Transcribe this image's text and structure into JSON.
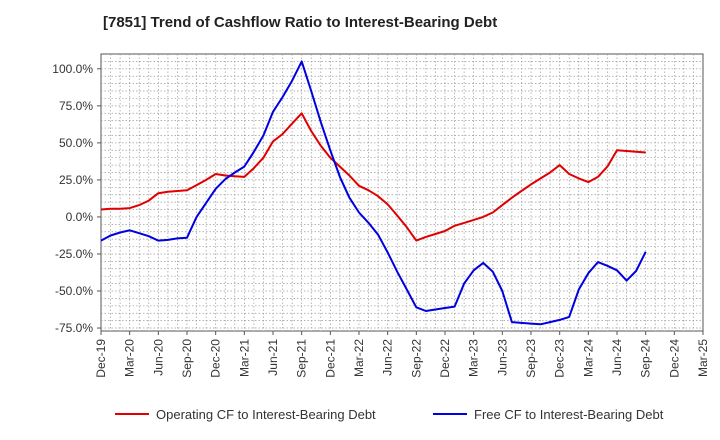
{
  "chart_data": {
    "type": "line",
    "title": "[7851]  Trend of Cashflow Ratio to Interest-Bearing Debt",
    "xlabel": "",
    "ylabel": "",
    "x_tick_labels": [
      "Dec-19",
      "Mar-20",
      "Jun-20",
      "Sep-20",
      "Dec-20",
      "Mar-21",
      "Jun-21",
      "Sep-21",
      "Dec-21",
      "Mar-22",
      "Jun-22",
      "Sep-22",
      "Dec-22",
      "Mar-23",
      "Jun-23",
      "Sep-23",
      "Dec-23",
      "Mar-24",
      "Jun-24",
      "Sep-24",
      "Dec-24",
      "Mar-25"
    ],
    "y_tick_labels": [
      "100.0%",
      "75.0%",
      "50.0%",
      "25.0%",
      "0.0%",
      "-25.0%",
      "-50.0%",
      "-75.0%"
    ],
    "y_ticks": [
      100,
      75,
      50,
      25,
      0,
      -25,
      -50,
      -75
    ],
    "ylim": [
      -77,
      110
    ],
    "xlim": [
      0,
      63
    ],
    "grid": true,
    "legend_position": "bottom",
    "series": [
      {
        "name": "Operating CF to Interest-Bearing Debt",
        "color": "#e00000",
        "points": [
          [
            0,
            5
          ],
          [
            1,
            5.5
          ],
          [
            2,
            5.5
          ],
          [
            3,
            6
          ],
          [
            4,
            8
          ],
          [
            5,
            11
          ],
          [
            6,
            16
          ],
          [
            7,
            17
          ],
          [
            8,
            17.5
          ],
          [
            9,
            18
          ],
          [
            10,
            21.5
          ],
          [
            11,
            25
          ],
          [
            12,
            29
          ],
          [
            13,
            28
          ],
          [
            14,
            27.5
          ],
          [
            15,
            27
          ],
          [
            16,
            33
          ],
          [
            17,
            40
          ],
          [
            18,
            51
          ],
          [
            19,
            56
          ],
          [
            20,
            63
          ],
          [
            21,
            70
          ],
          [
            22,
            58
          ],
          [
            23,
            48
          ],
          [
            24,
            40
          ],
          [
            25,
            34
          ],
          [
            26,
            28
          ],
          [
            27,
            21
          ],
          [
            28,
            18
          ],
          [
            29,
            14
          ],
          [
            30,
            8.5
          ],
          [
            31,
            1
          ],
          [
            32,
            -7
          ],
          [
            33,
            -16
          ],
          [
            34,
            -13.5
          ],
          [
            35,
            -11.5
          ],
          [
            36,
            -9.5
          ],
          [
            37,
            -6
          ],
          [
            38,
            -4
          ],
          [
            39,
            -2
          ],
          [
            40,
            0
          ],
          [
            41,
            3
          ],
          [
            42,
            8
          ],
          [
            43,
            13
          ],
          [
            44,
            17.5
          ],
          [
            45,
            22
          ],
          [
            46,
            26
          ],
          [
            47,
            30
          ],
          [
            48,
            35
          ],
          [
            49,
            29
          ],
          [
            50,
            26
          ],
          [
            51,
            23.5
          ],
          [
            52,
            27
          ],
          [
            53,
            34
          ],
          [
            54,
            45
          ],
          [
            55,
            44.5
          ],
          [
            56,
            44
          ],
          [
            57,
            43.5
          ]
        ]
      },
      {
        "name": "Free CF to Interest-Bearing Debt",
        "color": "#0000e0",
        "points": [
          [
            0,
            -16
          ],
          [
            1,
            -12.5
          ],
          [
            2,
            -10.5
          ],
          [
            3,
            -9
          ],
          [
            4,
            -11
          ],
          [
            5,
            -13
          ],
          [
            6,
            -16
          ],
          [
            7,
            -15.5
          ],
          [
            8,
            -14.5
          ],
          [
            9,
            -14
          ],
          [
            10,
            0
          ],
          [
            11,
            9.5
          ],
          [
            12,
            19
          ],
          [
            13,
            25.5
          ],
          [
            14,
            30
          ],
          [
            15,
            34
          ],
          [
            16,
            44
          ],
          [
            17,
            55
          ],
          [
            18,
            71
          ],
          [
            19,
            81
          ],
          [
            20,
            92
          ],
          [
            21,
            105
          ],
          [
            22,
            85
          ],
          [
            23,
            64
          ],
          [
            24,
            45
          ],
          [
            25,
            27
          ],
          [
            26,
            13
          ],
          [
            27,
            3
          ],
          [
            28,
            -4
          ],
          [
            29,
            -12
          ],
          [
            30,
            -24
          ],
          [
            31,
            -37
          ],
          [
            32,
            -49
          ],
          [
            33,
            -61
          ],
          [
            34,
            -63.5
          ],
          [
            35,
            -62.5
          ],
          [
            36,
            -61.5
          ],
          [
            37,
            -60.5
          ],
          [
            38,
            -45
          ],
          [
            39,
            -36
          ],
          [
            40,
            -31
          ],
          [
            41,
            -37
          ],
          [
            42,
            -50
          ],
          [
            43,
            -71
          ],
          [
            44,
            -71.5
          ],
          [
            45,
            -72
          ],
          [
            46,
            -72.5
          ],
          [
            47,
            -71
          ],
          [
            48,
            -69.5
          ],
          [
            49,
            -67.5
          ],
          [
            50,
            -49
          ],
          [
            51,
            -38
          ],
          [
            52,
            -30.5
          ],
          [
            53,
            -33
          ],
          [
            54,
            -36
          ],
          [
            55,
            -43
          ],
          [
            56,
            -36.5
          ],
          [
            57,
            -23.5
          ]
        ]
      }
    ]
  }
}
